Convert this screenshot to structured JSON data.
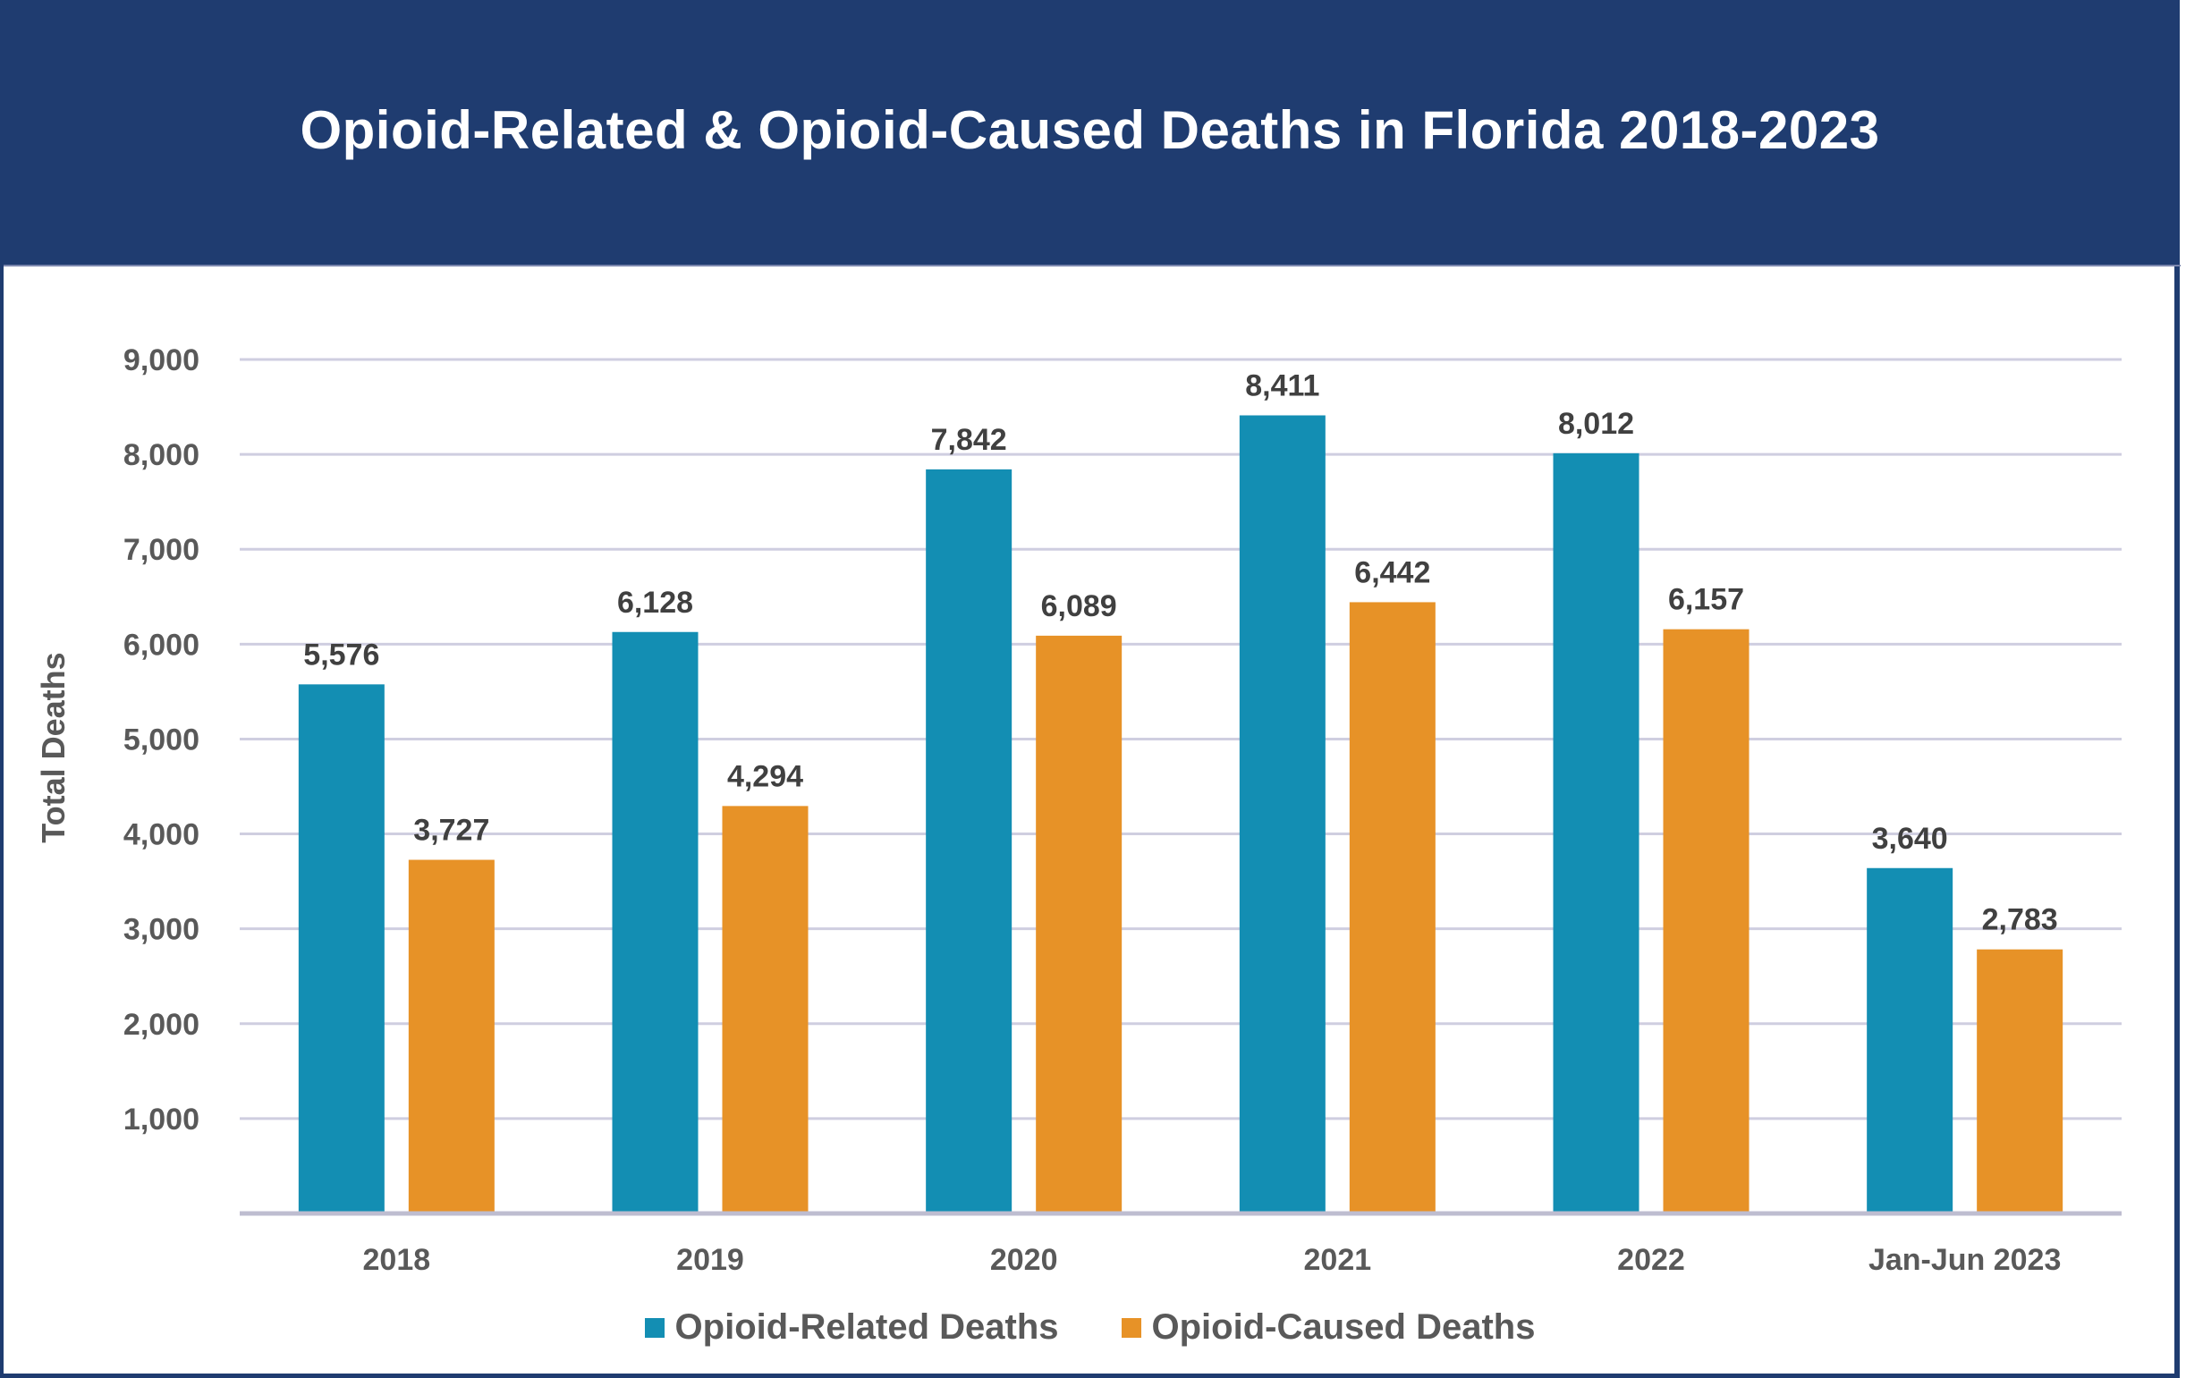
{
  "header": {
    "title": "Opioid-Related & Opioid-Caused Deaths in Florida 2018-2023",
    "background_color": "#1F3C70"
  },
  "legend": [
    {
      "label": "Opioid-Related Deaths",
      "color": "#138EB3"
    },
    {
      "label": "Opioid-Caused Deaths",
      "color": "#E79227"
    }
  ],
  "chart_data": {
    "type": "bar",
    "title": "Opioid-Related & Opioid-Caused Deaths in Florida 2018-2023",
    "xlabel": "",
    "ylabel": "Total Deaths",
    "ylim": [
      0,
      9000
    ],
    "yticks": [
      1000,
      2000,
      3000,
      4000,
      5000,
      6000,
      7000,
      8000,
      9000
    ],
    "ytick_labels": [
      "1,000",
      "2,000",
      "3,000",
      "4,000",
      "5,000",
      "6,000",
      "7,000",
      "8,000",
      "9,000"
    ],
    "grid": true,
    "legend_position": "bottom",
    "categories": [
      "2018",
      "2019",
      "2020",
      "2021",
      "2022",
      "Jan-Jun 2023"
    ],
    "series": [
      {
        "name": "Opioid-Related Deaths",
        "color": "#138EB3",
        "values": [
          5576,
          6128,
          7842,
          8411,
          8012,
          3640
        ],
        "labels": [
          "5,576",
          "6,128",
          "7,842",
          "8,411",
          "8,012",
          "3,640"
        ]
      },
      {
        "name": "Opioid-Caused Deaths",
        "color": "#E79227",
        "values": [
          3727,
          4294,
          6089,
          6442,
          6157,
          2783
        ],
        "labels": [
          "3,727",
          "4,294",
          "6,089",
          "6,442",
          "6,157",
          "2,783"
        ]
      }
    ]
  }
}
